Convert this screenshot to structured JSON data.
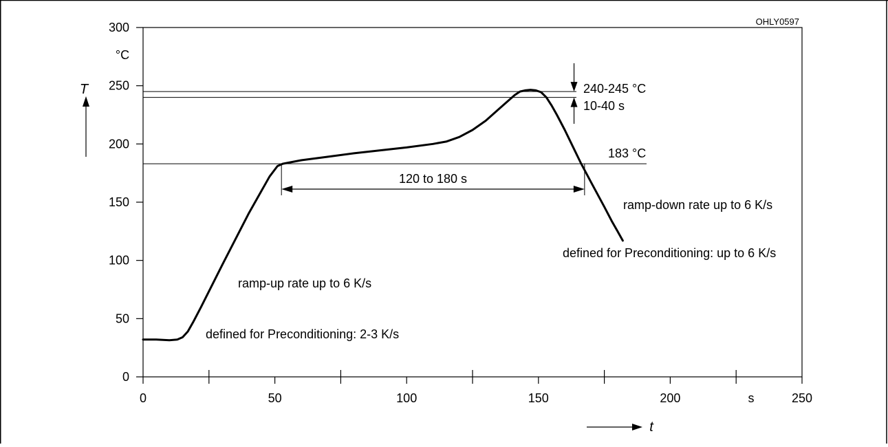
{
  "figure_id": "OHLY0597",
  "chart_data": {
    "type": "line",
    "title": "",
    "xlabel": "t",
    "x_unit": "s",
    "ylabel": "T",
    "y_unit": "°C",
    "xlim": [
      0,
      250
    ],
    "ylim": [
      0,
      300
    ],
    "x_ticks": [
      0,
      50,
      100,
      150,
      200,
      250
    ],
    "x_minor_ticks": [
      25,
      75,
      125,
      175,
      225
    ],
    "y_ticks": [
      0,
      50,
      100,
      150,
      200,
      250,
      300
    ],
    "grid": false,
    "series": [
      {
        "x": [
          0,
          5,
          10,
          13,
          15,
          17,
          19,
          22,
          30,
          40,
          48,
          51,
          53,
          60,
          70,
          80,
          90,
          100,
          110,
          115,
          120,
          125,
          130,
          135,
          139,
          141,
          143,
          145,
          147,
          149,
          151,
          153,
          155,
          157,
          160,
          163,
          166,
          170,
          175,
          178,
          180,
          182
        ],
        "y": [
          32,
          32,
          31.5,
          32,
          34,
          39,
          47,
          60,
          96,
          140,
          172,
          181,
          183,
          186,
          189,
          192,
          194.5,
          197,
          200,
          202,
          206,
          212,
          220,
          230,
          238,
          242,
          245,
          246,
          246.5,
          246,
          244.5,
          240,
          233,
          225,
          212,
          198,
          184,
          167,
          146,
          133,
          125,
          117
        ]
      }
    ],
    "reference_lines": {
      "y": [
        183,
        240,
        245
      ],
      "x": [
        52.5,
        167.5,
        163.5
      ]
    },
    "annotations": {
      "peak_temp": "240-245 °C",
      "peak_time": "10-40 s",
      "liquidus": "183 °C",
      "time_above_liquidus": "120 to 180 s",
      "ramp_down": "ramp-down rate up to 6 K/s",
      "precond_down": "defined for Preconditioning: up to 6 K/s",
      "ramp_up": "ramp-up rate up to 6 K/s",
      "precond_up": "defined for Preconditioning: 2-3 K/s"
    }
  }
}
